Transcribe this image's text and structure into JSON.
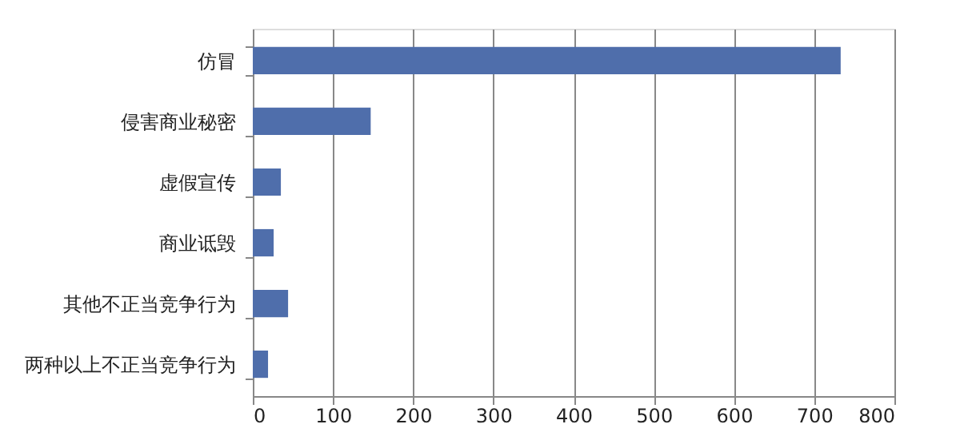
{
  "chart_data": {
    "type": "bar",
    "orientation": "horizontal",
    "categories": [
      "仿冒",
      "侵害商业秘密",
      "虚假宣传",
      "商业诋毁",
      "其他不正当竞争行为",
      "两种以上不正当竞争行为"
    ],
    "values": [
      733,
      147,
      35,
      26,
      44,
      19
    ],
    "color": "#4f6eab",
    "xlim": [
      0,
      800
    ],
    "xticks": [
      0,
      100,
      200,
      300,
      400,
      500,
      600,
      700,
      800
    ],
    "grid": "x"
  }
}
